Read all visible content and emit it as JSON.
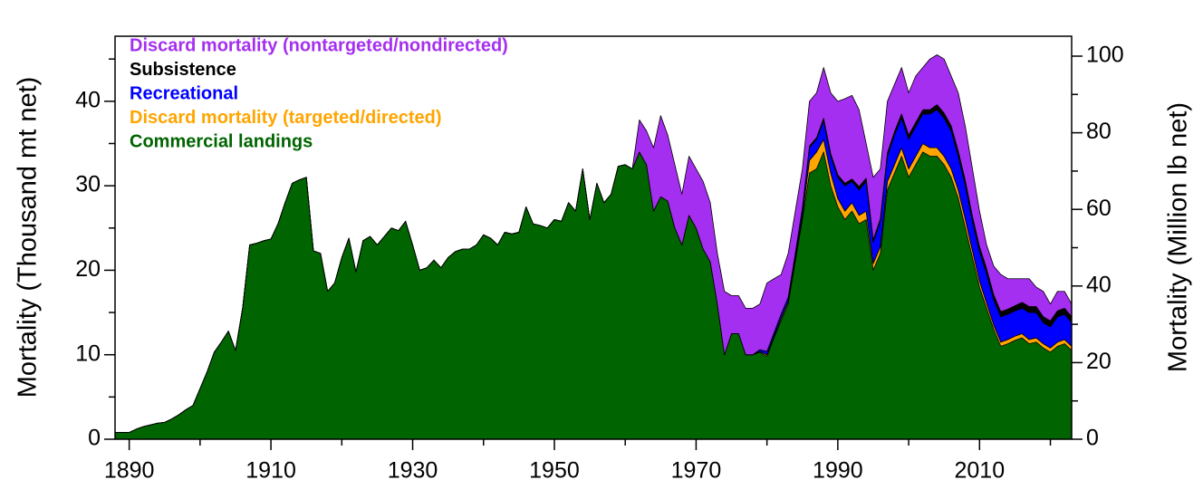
{
  "chart_data": {
    "type": "stacked_area",
    "y_label": "Mortality (Thousand mt net)",
    "y2_label": "Mortality (Million lb net)",
    "xlim": [
      1888,
      2023
    ],
    "xticks": [
      1890,
      1910,
      1930,
      1950,
      1970,
      1990,
      2010
    ],
    "xminorticks": [
      1900,
      1920,
      1940,
      1960,
      1980,
      2000,
      2020
    ],
    "ylim": [
      0,
      47.7
    ],
    "yticks": [
      0,
      10,
      20,
      30,
      40
    ],
    "yminorticks": [
      5,
      15,
      25,
      35,
      45
    ],
    "y2lim": [
      0,
      105.2
    ],
    "y2ticks": [
      0,
      20,
      40,
      60,
      80,
      100
    ],
    "y2minorticks": [
      10,
      30,
      50,
      70,
      90
    ],
    "legend": "top-left",
    "x": [
      1888,
      1889,
      1890,
      1891,
      1892,
      1893,
      1894,
      1895,
      1896,
      1897,
      1898,
      1899,
      1900,
      1901,
      1902,
      1903,
      1904,
      1905,
      1906,
      1907,
      1908,
      1909,
      1910,
      1911,
      1912,
      1913,
      1914,
      1915,
      1916,
      1917,
      1918,
      1919,
      1920,
      1921,
      1922,
      1923,
      1924,
      1925,
      1926,
      1927,
      1928,
      1929,
      1930,
      1931,
      1932,
      1933,
      1934,
      1935,
      1936,
      1937,
      1938,
      1939,
      1940,
      1941,
      1942,
      1943,
      1944,
      1945,
      1946,
      1947,
      1948,
      1949,
      1950,
      1951,
      1952,
      1953,
      1954,
      1955,
      1956,
      1957,
      1958,
      1959,
      1960,
      1961,
      1962,
      1963,
      1964,
      1965,
      1966,
      1967,
      1968,
      1969,
      1970,
      1971,
      1972,
      1973,
      1974,
      1975,
      1976,
      1977,
      1978,
      1979,
      1980,
      1981,
      1982,
      1983,
      1984,
      1985,
      1986,
      1987,
      1988,
      1989,
      1990,
      1991,
      1992,
      1993,
      1994,
      1995,
      1996,
      1997,
      1998,
      1999,
      2000,
      2001,
      2002,
      2003,
      2004,
      2005,
      2006,
      2007,
      2008,
      2009,
      2010,
      2011,
      2012,
      2013,
      2014,
      2015,
      2016,
      2017,
      2018,
      2019,
      2020,
      2021,
      2022,
      2023
    ],
    "series": [
      {
        "name": "Discard mortality (nontargeted/nondirected)",
        "color": "#a52ff0",
        "values": [
          0,
          0,
          0,
          0,
          0,
          0,
          0,
          0,
          0,
          0,
          0,
          0,
          0,
          0,
          0,
          0,
          0,
          0,
          0,
          0,
          0,
          0,
          0,
          0,
          0,
          0,
          0,
          0,
          0,
          0,
          0,
          0,
          0,
          0,
          0,
          0,
          0,
          0,
          0,
          0,
          0,
          0,
          0,
          0,
          0,
          0,
          0,
          0,
          0,
          0,
          0,
          0,
          0,
          0,
          0,
          0,
          0,
          0,
          0,
          0,
          0,
          0,
          0,
          0,
          0,
          0,
          0,
          0,
          0,
          0,
          0,
          0,
          0,
          0,
          3.8,
          4.0,
          7.5,
          9.6,
          7.8,
          7.5,
          6.0,
          7.0,
          7.0,
          8.0,
          7.0,
          6.0,
          7.5,
          4.5,
          4.5,
          5.5,
          5.5,
          5.4,
          8.1,
          6.4,
          4.7,
          5.2,
          5.0,
          4.6,
          5.3,
          5.3,
          6.0,
          7.2,
          8.7,
          10.0,
          9.9,
          9.1,
          4.1,
          7.4,
          5.9,
          6.1,
          5.6,
          5.5,
          5.0,
          5.5,
          5.0,
          6.0,
          5.9,
          6.4,
          5.9,
          6.9,
          6.4,
          5.6,
          4.2,
          2.8,
          3.4,
          4.4,
          3.6,
          3.2,
          2.8,
          3.3,
          2.3,
          3.0,
          2.0,
          2.3,
          2.0,
          1.5
        ]
      },
      {
        "name": "Subsistence",
        "color": "#000000",
        "values": [
          0,
          0,
          0,
          0,
          0,
          0,
          0,
          0,
          0,
          0,
          0,
          0,
          0,
          0,
          0,
          0,
          0,
          0,
          0,
          0,
          0,
          0,
          0,
          0,
          0,
          0,
          0,
          0,
          0,
          0,
          0,
          0,
          0,
          0,
          0,
          0,
          0,
          0,
          0,
          0,
          0,
          0,
          0,
          0,
          0,
          0,
          0,
          0,
          0,
          0,
          0,
          0,
          0,
          0,
          0,
          0,
          0,
          0,
          0,
          0,
          0,
          0,
          0,
          0,
          0,
          0,
          0,
          0,
          0,
          0,
          0,
          0,
          0,
          0,
          0,
          0,
          0,
          0,
          0,
          0,
          0,
          0,
          0,
          0,
          0,
          0,
          0,
          0,
          0,
          0,
          0,
          0,
          0,
          0,
          0,
          0,
          0,
          0.1,
          0.2,
          0.2,
          0.3,
          0.3,
          0.3,
          0.3,
          0.3,
          0.4,
          0.4,
          0.3,
          0.3,
          0.4,
          0.4,
          0.5,
          0.5,
          0.5,
          0.5,
          0.5,
          0.6,
          0.6,
          0.6,
          0.6,
          0.6,
          0.6,
          0.6,
          0.6,
          0.6,
          0.6,
          0.6,
          0.6,
          0.7,
          0.7,
          0.7,
          0.7,
          0.7,
          0.7,
          0.7,
          0.7
        ]
      },
      {
        "name": "Recreational",
        "color": "#0000ff",
        "values": [
          0,
          0,
          0,
          0,
          0,
          0,
          0,
          0,
          0,
          0,
          0,
          0,
          0,
          0,
          0,
          0,
          0,
          0,
          0,
          0,
          0,
          0,
          0,
          0,
          0,
          0,
          0,
          0,
          0,
          0,
          0,
          0,
          0,
          0,
          0,
          0,
          0,
          0,
          0,
          0,
          0,
          0,
          0,
          0,
          0,
          0,
          0,
          0,
          0,
          0,
          0,
          0,
          0,
          0,
          0,
          0,
          0,
          0,
          0,
          0,
          0,
          0,
          0,
          0,
          0,
          0,
          0,
          0,
          0,
          0,
          0,
          0,
          0,
          0,
          0,
          0,
          0,
          0,
          0,
          0,
          0,
          0,
          0,
          0,
          0,
          0,
          0,
          0,
          0,
          0,
          0,
          0.2,
          0.4,
          0.4,
          0.5,
          0.5,
          0.6,
          0.8,
          1.5,
          1.5,
          2.2,
          2.0,
          2.5,
          3.0,
          2.5,
          3.0,
          3.5,
          2.5,
          3.0,
          3.0,
          3.5,
          3.5,
          3.5,
          3.5,
          3.5,
          4.0,
          4.5,
          4.5,
          4.5,
          4.0,
          4.0,
          3.5,
          3.5,
          3.5,
          3.0,
          3.0,
          3.0,
          3.0,
          3.0,
          3.2,
          3.0,
          2.5,
          2.5,
          3.0,
          3.0,
          2.8
        ]
      },
      {
        "name": "Discard mortality (targeted/directed)",
        "color": "#ffa500",
        "values": [
          0,
          0,
          0,
          0,
          0,
          0,
          0,
          0,
          0,
          0,
          0,
          0,
          0,
          0,
          0,
          0,
          0,
          0,
          0,
          0,
          0,
          0,
          0,
          0,
          0,
          0,
          0,
          0,
          0,
          0,
          0,
          0,
          0,
          0,
          0,
          0,
          0,
          0,
          0,
          0,
          0,
          0,
          0,
          0,
          0,
          0,
          0,
          0,
          0,
          0,
          0,
          0,
          0,
          0,
          0,
          0,
          0,
          0,
          0,
          0,
          0,
          0,
          0,
          0,
          0,
          0,
          0,
          0,
          0,
          0,
          0,
          0,
          0,
          0,
          0,
          0,
          0,
          0,
          0,
          0,
          0,
          0,
          0,
          0,
          0,
          0,
          0,
          0,
          0,
          0,
          0,
          0.1,
          0.2,
          0.2,
          0.3,
          0.3,
          0.4,
          0.5,
          1.5,
          2.0,
          1.5,
          1.5,
          1.0,
          1.0,
          1.0,
          1.0,
          1.0,
          0.8,
          0.8,
          1.0,
          1.0,
          1.0,
          1.0,
          1.0,
          1.0,
          1.0,
          1.0,
          1.0,
          1.0,
          1.0,
          1.0,
          0.8,
          0.7,
          0.6,
          0.5,
          0.5,
          0.5,
          0.5,
          0.5,
          0.5,
          0.5,
          0.5,
          0.5,
          0.5,
          0.5,
          0.5
        ]
      },
      {
        "name": "Commercial landings",
        "color": "#006400",
        "values": [
          0.8,
          0.8,
          0.8,
          1.2,
          1.5,
          1.7,
          1.9,
          2.0,
          2.4,
          2.9,
          3.5,
          4.0,
          6.0,
          8.0,
          10.3,
          11.5,
          12.8,
          10.5,
          15.5,
          23.0,
          23.2,
          23.5,
          23.7,
          25.5,
          28.0,
          30.3,
          30.7,
          31.0,
          22.3,
          22.0,
          17.5,
          18.5,
          21.5,
          23.8,
          19.8,
          23.5,
          24.0,
          23.0,
          24.0,
          25.0,
          24.7,
          25.8,
          23.0,
          20.0,
          20.3,
          21.2,
          20.3,
          21.5,
          22.2,
          22.5,
          22.5,
          23.0,
          24.2,
          23.8,
          23.0,
          24.5,
          24.3,
          24.5,
          27.5,
          25.5,
          25.3,
          25.0,
          26.0,
          25.8,
          28.0,
          27.0,
          32.0,
          26.0,
          30.3,
          28.0,
          29.0,
          32.3,
          32.5,
          32.0,
          34.0,
          32.5,
          27.0,
          28.7,
          28.2,
          25.0,
          23.0,
          26.5,
          25.0,
          22.5,
          21.0,
          16.0,
          10.0,
          12.5,
          12.5,
          10.0,
          10.0,
          10.3,
          9.8,
          12.0,
          14.0,
          16.0,
          21.0,
          26.0,
          31.5,
          32.0,
          34.0,
          30.0,
          27.5,
          26.0,
          27.0,
          25.5,
          26.0,
          20.0,
          22.0,
          29.5,
          31.5,
          33.5,
          31.0,
          32.5,
          34.0,
          33.5,
          33.5,
          32.5,
          31.0,
          28.5,
          25.0,
          21.5,
          18.0,
          15.5,
          13.0,
          11.0,
          11.3,
          11.7,
          12.0,
          11.3,
          11.5,
          10.8,
          10.3,
          11.0,
          11.3,
          10.5
        ]
      }
    ]
  }
}
